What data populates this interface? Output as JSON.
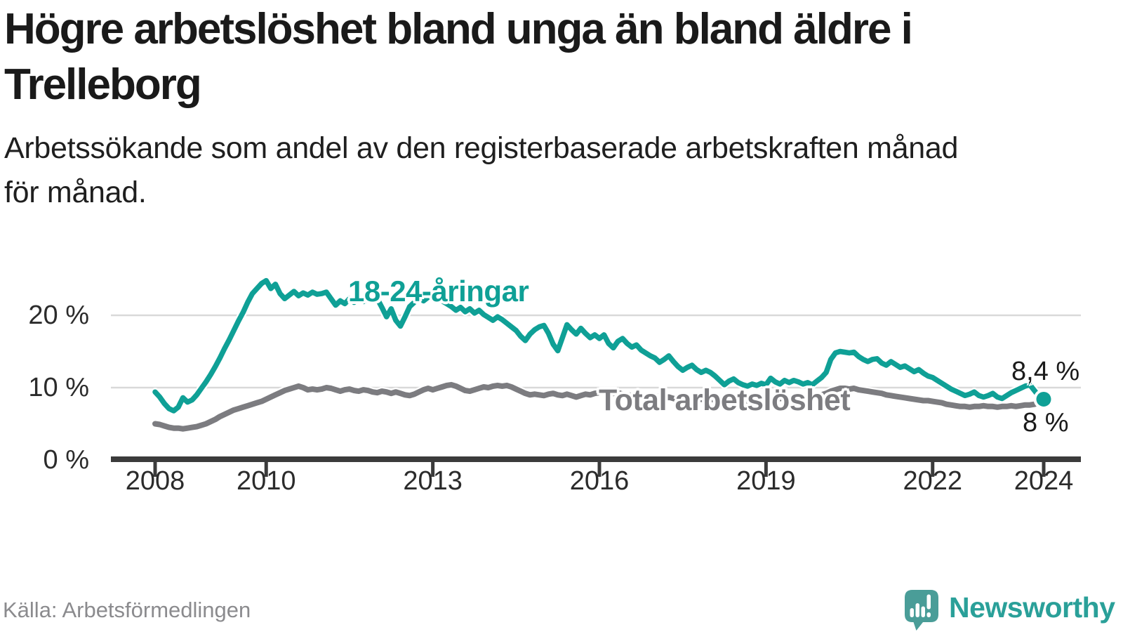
{
  "header": {
    "title_line1": "Högre arbetslöshet bland unga än bland äldre i",
    "title_line2": "Trelleborg",
    "subtitle_line1": "Arbetssökande som andel av den registerbaserade arbetskraften månad",
    "subtitle_line2": "för månad."
  },
  "colors": {
    "teal": "#0fa096",
    "gray": "#7c7c80",
    "grid": "#d9d9d9",
    "axis": "#3b3b3b",
    "title_text": "#1a1a1a",
    "annotation_text": "#1b1b1b",
    "muted_text": "#8b8b8e",
    "brand_teal": "#2aa099"
  },
  "chart_data": {
    "type": "line",
    "title": "Högre arbetslöshet bland unga än bland äldre i Trelleborg",
    "subtitle": "Arbetssökande som andel av den registerbaserade arbetskraften månad för månad.",
    "unit": "%",
    "frequency": "monthly",
    "x_start_year": 2008,
    "x_end": "2024-01",
    "x_tick_years": [
      2008,
      2010,
      2013,
      2016,
      2019,
      2022,
      2024
    ],
    "y_ticks": [
      {
        "value": 0,
        "label": "0 %"
      },
      {
        "value": 10,
        "label": "10 %"
      },
      {
        "value": 20,
        "label": "20 %"
      }
    ],
    "ylim": [
      0,
      26
    ],
    "grid": "horizontal",
    "legend_position": "inline-labels",
    "series": [
      {
        "name": "Total arbetslöshet",
        "color": "#7c7c80",
        "end_value_label": "8 %",
        "values": [
          5.0,
          4.9,
          4.7,
          4.5,
          4.4,
          4.4,
          4.3,
          4.4,
          4.5,
          4.6,
          4.8,
          5.0,
          5.3,
          5.6,
          6.0,
          6.3,
          6.6,
          6.9,
          7.1,
          7.3,
          7.5,
          7.7,
          7.9,
          8.1,
          8.4,
          8.7,
          9.0,
          9.3,
          9.6,
          9.8,
          10.0,
          10.2,
          10.0,
          9.7,
          9.8,
          9.7,
          9.8,
          10.0,
          9.9,
          9.7,
          9.5,
          9.7,
          9.8,
          9.6,
          9.5,
          9.7,
          9.6,
          9.4,
          9.3,
          9.5,
          9.4,
          9.2,
          9.4,
          9.2,
          9.0,
          8.9,
          9.1,
          9.4,
          9.7,
          9.9,
          9.7,
          9.9,
          10.1,
          10.3,
          10.4,
          10.2,
          9.9,
          9.6,
          9.5,
          9.7,
          9.9,
          10.1,
          10.0,
          10.2,
          10.3,
          10.2,
          10.3,
          10.1,
          9.8,
          9.5,
          9.2,
          9.0,
          9.1,
          9.0,
          8.9,
          9.1,
          9.2,
          9.0,
          8.9,
          9.1,
          8.9,
          8.7,
          8.9,
          9.1,
          9.0,
          9.2,
          9.3,
          9.5,
          9.4,
          9.2,
          9.3,
          9.1,
          9.0,
          8.9,
          9.0,
          8.8,
          8.7,
          8.8,
          8.9,
          8.7,
          8.6,
          8.7,
          8.5,
          8.4,
          8.5,
          8.3,
          8.4,
          8.5,
          8.4,
          8.3,
          8.4,
          8.3,
          8.2,
          8.1,
          8.2,
          8.3,
          8.2,
          8.1,
          8.2,
          8.3,
          8.4,
          8.5,
          8.6,
          8.5,
          8.4,
          8.5,
          8.6,
          8.5,
          8.6,
          8.7,
          8.6,
          8.7,
          8.8,
          8.9,
          9.0,
          9.2,
          9.5,
          9.7,
          9.9,
          9.9,
          9.8,
          9.9,
          9.7,
          9.6,
          9.5,
          9.4,
          9.3,
          9.2,
          9.0,
          8.9,
          8.8,
          8.7,
          8.6,
          8.5,
          8.4,
          8.3,
          8.2,
          8.2,
          8.1,
          8.0,
          7.9,
          7.7,
          7.6,
          7.5,
          7.4,
          7.4,
          7.3,
          7.4,
          7.4,
          7.5,
          7.4,
          7.4,
          7.3,
          7.4,
          7.4,
          7.5,
          7.4,
          7.5,
          7.6,
          7.6,
          7.7,
          7.9,
          8.0,
          8.1
        ]
      },
      {
        "name": "18-24-åringar",
        "color": "#0fa096",
        "end_dot": true,
        "end_value_label": "8,4 %",
        "values": [
          9.4,
          8.7,
          7.8,
          7.1,
          6.8,
          7.3,
          8.6,
          8.0,
          8.3,
          9.0,
          9.9,
          10.8,
          11.8,
          12.9,
          14.1,
          15.4,
          16.6,
          17.9,
          19.2,
          20.4,
          21.8,
          23.0,
          23.7,
          24.4,
          24.8,
          23.7,
          24.3,
          23.0,
          22.3,
          22.8,
          23.3,
          22.7,
          23.1,
          22.8,
          23.2,
          22.9,
          23.0,
          23.2,
          22.3,
          21.4,
          22.0,
          21.6,
          22.3,
          21.8,
          22.2,
          21.9,
          22.3,
          22.0,
          22.3,
          21.1,
          19.8,
          20.9,
          19.3,
          18.5,
          19.8,
          21.2,
          21.8,
          22.3,
          22.0,
          22.5,
          22.9,
          22.5,
          22.0,
          21.6,
          21.2,
          20.7,
          21.1,
          20.5,
          20.9,
          20.3,
          20.7,
          20.1,
          19.7,
          19.3,
          19.8,
          19.4,
          18.9,
          18.4,
          17.9,
          17.1,
          16.5,
          17.4,
          18.0,
          18.4,
          18.6,
          17.5,
          16.0,
          15.1,
          16.9,
          18.7,
          18.0,
          17.4,
          18.2,
          17.5,
          16.9,
          17.3,
          16.8,
          17.3,
          16.1,
          15.5,
          16.4,
          16.8,
          16.1,
          15.6,
          15.9,
          15.2,
          14.8,
          14.4,
          14.1,
          13.5,
          13.9,
          14.4,
          13.6,
          12.9,
          12.4,
          12.8,
          13.1,
          12.5,
          12.1,
          12.4,
          12.1,
          11.6,
          11.0,
          10.4,
          10.9,
          11.2,
          10.7,
          10.4,
          10.2,
          10.5,
          10.3,
          10.6,
          10.4,
          11.3,
          10.8,
          10.5,
          11.0,
          10.7,
          11.0,
          10.8,
          10.5,
          10.7,
          10.4,
          10.9,
          11.4,
          12.1,
          13.9,
          14.8,
          15.0,
          14.9,
          14.8,
          14.9,
          14.3,
          13.9,
          13.6,
          13.9,
          14.0,
          13.4,
          13.1,
          13.6,
          13.2,
          12.8,
          13.0,
          12.6,
          12.2,
          12.5,
          12.0,
          11.6,
          11.4,
          11.0,
          10.6,
          10.2,
          9.8,
          9.5,
          9.2,
          8.9,
          9.1,
          9.4,
          8.9,
          8.7,
          8.9,
          9.2,
          8.7,
          8.5,
          8.9,
          9.3,
          9.6,
          9.9,
          10.2,
          10.4,
          9.6,
          8.8,
          8.4
        ]
      }
    ],
    "annotations": [
      {
        "text": "8,4 %",
        "series": "18-24-åringar"
      },
      {
        "text": "8 %",
        "series": "Total arbetslöshet"
      }
    ]
  },
  "footer": {
    "source": "Källa: Arbetsförmedlingen",
    "brand": "Newsworthy"
  }
}
